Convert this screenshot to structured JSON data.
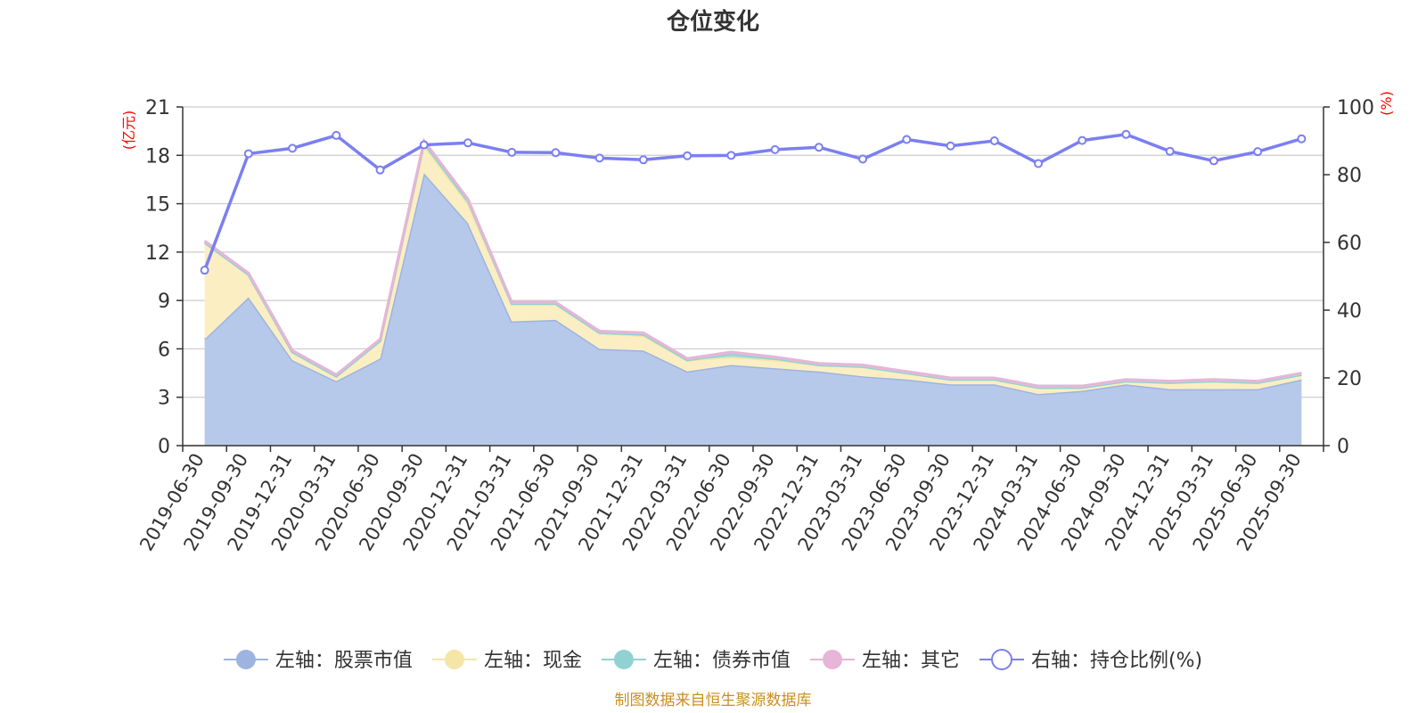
{
  "chart_data": {
    "type": "area",
    "title": "仓位变化",
    "source": "制图数据来自恒生聚源数据库",
    "left_axis": {
      "unit": "(亿元)",
      "ylim": [
        0,
        21
      ],
      "ticks": [
        0,
        3,
        6,
        9,
        12,
        15,
        18,
        21
      ]
    },
    "right_axis": {
      "unit": "(%)",
      "ylim": [
        0,
        100
      ],
      "ticks": [
        0,
        20,
        40,
        60,
        80,
        100
      ]
    },
    "grid": true,
    "legend_position": "bottom",
    "x": [
      "2019-06-30",
      "2019-09-30",
      "2019-12-31",
      "2020-03-31",
      "2020-06-30",
      "2020-09-30",
      "2020-12-31",
      "2021-03-31",
      "2021-06-30",
      "2021-09-30",
      "2021-12-31",
      "2022-03-31",
      "2022-06-30",
      "2022-09-30",
      "2022-12-31",
      "2023-03-31",
      "2023-06-30",
      "2023-09-30",
      "2023-12-31",
      "2024-03-31",
      "2024-06-30",
      "2024-09-30",
      "2024-12-31",
      "2025-03-31",
      "2025-06-30",
      "2025-09-30"
    ],
    "series": [
      {
        "name": "左轴：股票市值",
        "axis": "left",
        "kind": "stacked-area",
        "color": "#9db4e0",
        "fill": "#b7c9ea",
        "values": [
          6.6,
          9.2,
          5.3,
          4.0,
          5.4,
          16.9,
          13.8,
          7.7,
          7.8,
          6.0,
          5.9,
          4.6,
          5.0,
          4.8,
          4.6,
          4.3,
          4.1,
          3.8,
          3.8,
          3.2,
          3.4,
          3.8,
          3.5,
          3.5,
          3.5,
          4.1
        ]
      },
      {
        "name": "左轴：现金",
        "axis": "left",
        "kind": "stacked-area",
        "color": "#f5e6a8",
        "fill": "#fbeec2",
        "values": [
          6.0,
          1.4,
          0.5,
          0.3,
          1.1,
          1.7,
          1.2,
          1.1,
          1.0,
          1.0,
          0.9,
          0.7,
          0.5,
          0.5,
          0.4,
          0.6,
          0.4,
          0.3,
          0.3,
          0.4,
          0.2,
          0.2,
          0.4,
          0.5,
          0.4,
          0.3
        ]
      },
      {
        "name": "左轴：债券市值",
        "axis": "left",
        "kind": "stacked-area",
        "color": "#92d1d1",
        "fill": "#a9dcdc",
        "values": [
          0,
          0,
          0,
          0,
          0,
          0.2,
          0.2,
          0,
          0,
          0,
          0.1,
          0,
          0.2,
          0.1,
          0,
          0,
          0,
          0,
          0,
          0,
          0,
          0,
          0,
          0,
          0,
          0
        ]
      },
      {
        "name": "左轴：其它",
        "axis": "left",
        "kind": "stacked-area",
        "color": "#e6b5d8",
        "fill": "#eec8e2",
        "values": [
          0.1,
          0.1,
          0.1,
          0.1,
          0.1,
          0.1,
          0.1,
          0.1,
          0.1,
          0.1,
          0.1,
          0.1,
          0.1,
          0.1,
          0.1,
          0.1,
          0.1,
          0.1,
          0.1,
          0.1,
          0.1,
          0.1,
          0.1,
          0.1,
          0.1,
          0.1
        ]
      },
      {
        "name": "右轴：持仓比例(%)",
        "axis": "right",
        "kind": "line",
        "color": "#7b7ff0",
        "values": [
          51.8,
          86.2,
          87.8,
          91.6,
          81.4,
          88.8,
          89.4,
          86.6,
          86.5,
          84.9,
          84.4,
          85.6,
          85.7,
          87.4,
          88.1,
          84.6,
          90.4,
          88.5,
          90.0,
          83.3,
          90.1,
          91.9,
          86.9,
          84.1,
          86.8,
          90.6
        ]
      }
    ]
  }
}
